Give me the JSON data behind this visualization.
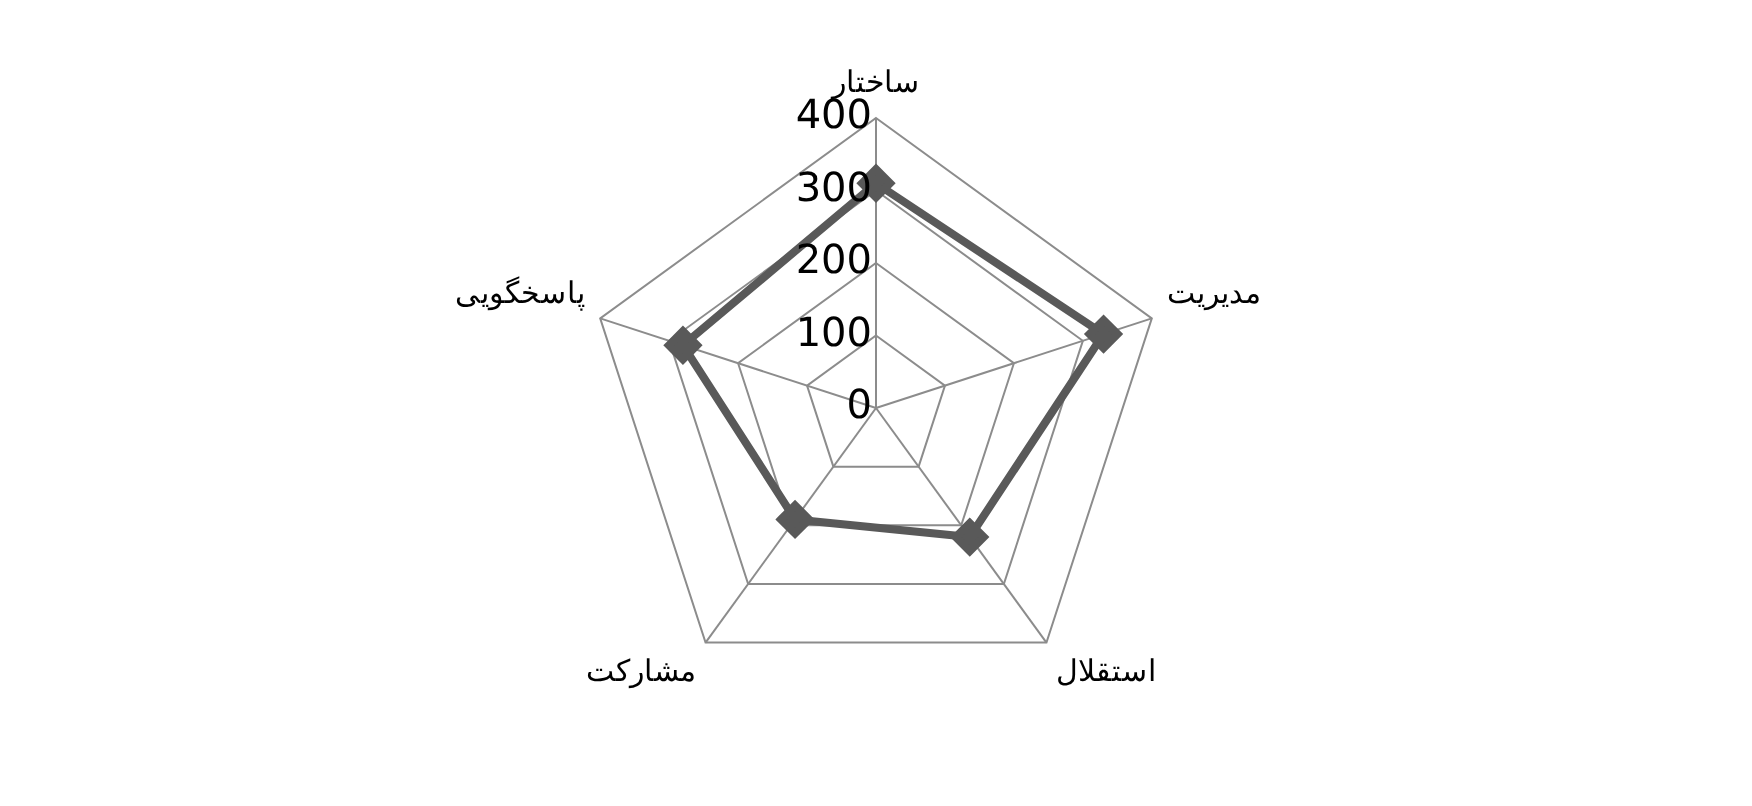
{
  "chart_data": {
    "type": "radar",
    "categories": [
      "ساختار",
      "مدیریت",
      "استقلال",
      "مشارکت",
      "پاسخگویی"
    ],
    "series": [
      {
        "color": "#595959",
        "values": [
          310,
          330,
          220,
          190,
          280
        ]
      }
    ],
    "ylim": [
      0,
      400
    ],
    "yticks": [
      0,
      100,
      200,
      300,
      400
    ],
    "grid": true,
    "legend": false,
    "marker": "diamond"
  }
}
